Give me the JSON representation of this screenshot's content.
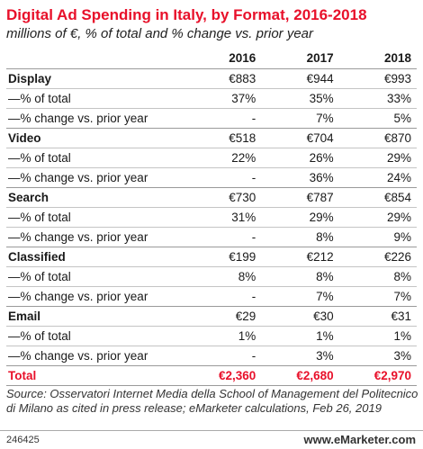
{
  "chart_data": {
    "type": "table",
    "title": "Digital Ad Spending in Italy, by Format, 2016-2018",
    "subtitle": "millions of €, % of total and % change vs. prior year",
    "columns": [
      "2016",
      "2017",
      "2018"
    ],
    "rows": [
      {
        "label": "Display",
        "kind": "group",
        "values": [
          "€883",
          "€944",
          "€993"
        ]
      },
      {
        "label": "—% of total",
        "kind": "sub",
        "values": [
          "37%",
          "35%",
          "33%"
        ]
      },
      {
        "label": "—% change vs. prior year",
        "kind": "sub",
        "values": [
          "-",
          "7%",
          "5%"
        ]
      },
      {
        "label": "Video",
        "kind": "group",
        "values": [
          "€518",
          "€704",
          "€870"
        ]
      },
      {
        "label": "—% of total",
        "kind": "sub",
        "values": [
          "22%",
          "26%",
          "29%"
        ]
      },
      {
        "label": "—% change vs. prior year",
        "kind": "sub",
        "values": [
          "-",
          "36%",
          "24%"
        ]
      },
      {
        "label": "Search",
        "kind": "group",
        "values": [
          "€730",
          "€787",
          "€854"
        ]
      },
      {
        "label": "—% of total",
        "kind": "sub",
        "values": [
          "31%",
          "29%",
          "29%"
        ]
      },
      {
        "label": "—% change vs. prior year",
        "kind": "sub",
        "values": [
          "-",
          "8%",
          "9%"
        ]
      },
      {
        "label": "Classified",
        "kind": "group",
        "values": [
          "€199",
          "€212",
          "€226"
        ]
      },
      {
        "label": "—% of total",
        "kind": "sub",
        "values": [
          "8%",
          "8%",
          "8%"
        ]
      },
      {
        "label": "—% change vs. prior year",
        "kind": "sub",
        "values": [
          "-",
          "7%",
          "7%"
        ]
      },
      {
        "label": "Email",
        "kind": "group",
        "values": [
          "€29",
          "€30",
          "€31"
        ]
      },
      {
        "label": "—% of total",
        "kind": "sub",
        "values": [
          "1%",
          "1%",
          "1%"
        ]
      },
      {
        "label": "—% change vs. prior year",
        "kind": "sub",
        "values": [
          "-",
          "3%",
          "3%"
        ]
      },
      {
        "label": "Total",
        "kind": "total",
        "values": [
          "€2,360",
          "€2,680",
          "€2,970"
        ]
      }
    ],
    "source": "Source: Osservatori Internet Media della School of Management del Politecnico di Milano as cited in press release; eMarketer calculations, Feb 26, 2019",
    "chart_id": "246425",
    "brand": "www.eMarketer.com"
  },
  "colors": {
    "accent": "#e8102a",
    "text": "#1a1a1a",
    "rule": "#c4c4c4"
  }
}
